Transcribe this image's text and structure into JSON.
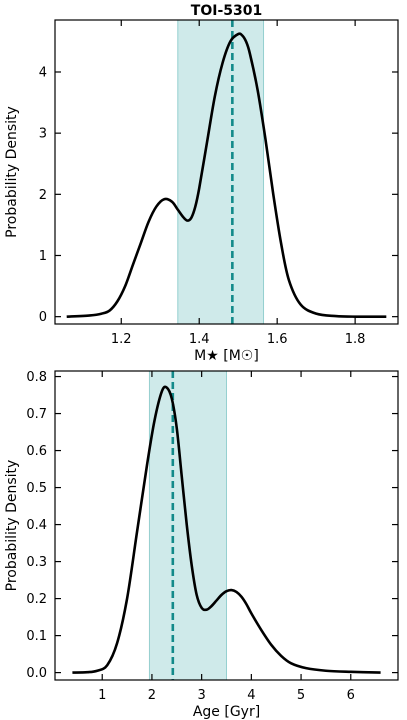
{
  "chart_data": [
    {
      "type": "line",
      "title": "TOI-5301",
      "xlabel": "M★ [M☉]",
      "ylabel": "Probability Density",
      "xlim": [
        1.03,
        1.91
      ],
      "ylim": [
        -0.12,
        4.85
      ],
      "xticks": [
        1.2,
        1.4,
        1.6,
        1.8
      ],
      "xtick_labels": [
        "1.2",
        "1.4",
        "1.6",
        "1.8"
      ],
      "yticks": [
        0,
        1,
        2,
        3,
        4
      ],
      "ytick_labels": [
        "0",
        "1",
        "2",
        "3",
        "4"
      ],
      "shaded_region": [
        1.345,
        1.565
      ],
      "median": 1.485,
      "grid": false,
      "series": [
        {
          "color": "#000000",
          "x": [
            1.06,
            1.12,
            1.15,
            1.17,
            1.19,
            1.21,
            1.23,
            1.25,
            1.27,
            1.29,
            1.31,
            1.33,
            1.345,
            1.36,
            1.37,
            1.38,
            1.39,
            1.4,
            1.42,
            1.44,
            1.46,
            1.48,
            1.5,
            1.51,
            1.52,
            1.53,
            1.55,
            1.57,
            1.59,
            1.61,
            1.63,
            1.66,
            1.7,
            1.75,
            1.8,
            1.88
          ],
          "y": [
            0.0,
            0.02,
            0.05,
            0.1,
            0.25,
            0.5,
            0.85,
            1.2,
            1.55,
            1.8,
            1.92,
            1.88,
            1.75,
            1.62,
            1.57,
            1.62,
            1.8,
            2.1,
            2.85,
            3.6,
            4.15,
            4.5,
            4.62,
            4.6,
            4.5,
            4.3,
            3.7,
            2.9,
            2.0,
            1.2,
            0.6,
            0.2,
            0.05,
            0.01,
            0.0,
            0.0
          ]
        }
      ]
    },
    {
      "type": "line",
      "title": "",
      "xlabel": "Age [Gyr]",
      "ylabel": "Probability Density",
      "xlim": [
        0.05,
        6.95
      ],
      "ylim": [
        -0.02,
        0.815
      ],
      "xticks": [
        1,
        2,
        3,
        4,
        5,
        6
      ],
      "xtick_labels": [
        "1",
        "2",
        "3",
        "4",
        "5",
        "6"
      ],
      "yticks": [
        0.0,
        0.1,
        0.2,
        0.3,
        0.4,
        0.5,
        0.6,
        0.7,
        0.8
      ],
      "ytick_labels": [
        "0.0",
        "0.1",
        "0.2",
        "0.3",
        "0.4",
        "0.5",
        "0.6",
        "0.7",
        "0.8"
      ],
      "shaded_region": [
        1.95,
        3.5
      ],
      "median": 2.42,
      "grid": false,
      "series": [
        {
          "color": "#000000",
          "x": [
            0.4,
            0.7,
            0.9,
            1.1,
            1.3,
            1.5,
            1.7,
            1.9,
            2.05,
            2.2,
            2.3,
            2.4,
            2.5,
            2.6,
            2.7,
            2.8,
            2.9,
            3.0,
            3.1,
            3.2,
            3.3,
            3.4,
            3.5,
            3.6,
            3.7,
            3.8,
            3.9,
            4.0,
            4.2,
            4.4,
            4.6,
            4.8,
            5.1,
            5.5,
            6.0,
            6.6
          ],
          "y": [
            0.0,
            0.001,
            0.005,
            0.02,
            0.08,
            0.2,
            0.38,
            0.56,
            0.68,
            0.76,
            0.77,
            0.74,
            0.66,
            0.53,
            0.4,
            0.29,
            0.21,
            0.175,
            0.17,
            0.18,
            0.195,
            0.21,
            0.22,
            0.223,
            0.218,
            0.205,
            0.185,
            0.16,
            0.115,
            0.075,
            0.045,
            0.025,
            0.012,
            0.005,
            0.002,
            0.0
          ]
        }
      ]
    }
  ]
}
